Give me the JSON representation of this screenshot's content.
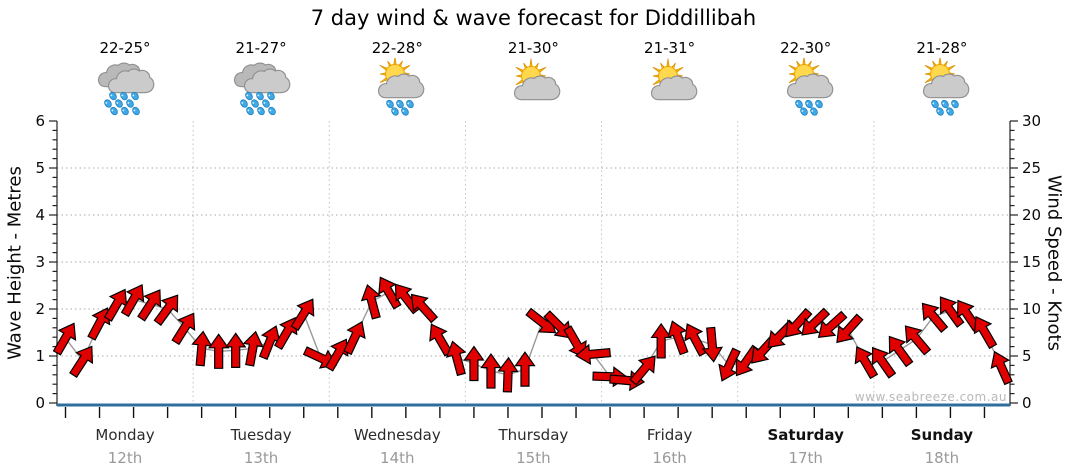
{
  "title": "7 day wind & wave forecast for Diddillibah",
  "watermark": "www.seabreeze.com.au",
  "days": [
    {
      "name": "Monday",
      "date": "12th",
      "temp": "22-25°",
      "icon": "rain",
      "bold": false
    },
    {
      "name": "Tuesday",
      "date": "13th",
      "temp": "21-27°",
      "icon": "rain",
      "bold": false
    },
    {
      "name": "Wednesday",
      "date": "14th",
      "temp": "22-28°",
      "icon": "sun-cloud-rain",
      "bold": false
    },
    {
      "name": "Thursday",
      "date": "15th",
      "temp": "21-30°",
      "icon": "sun-cloud",
      "bold": false
    },
    {
      "name": "Friday",
      "date": "16th",
      "temp": "21-31°",
      "icon": "sun-cloud",
      "bold": false
    },
    {
      "name": "Saturday",
      "date": "17th",
      "temp": "22-30°",
      "icon": "sun-cloud-rain",
      "bold": true
    },
    {
      "name": "Sunday",
      "date": "18th",
      "temp": "21-28°",
      "icon": "sun-cloud-rain",
      "bold": true
    }
  ],
  "chart_data": {
    "type": "line",
    "categories": [
      "Monday 12th",
      "Tuesday 13th",
      "Wednesday 14th",
      "Thursday 15th",
      "Friday 16th",
      "Saturday 17th",
      "Sunday 18th"
    ],
    "left_axis": {
      "title": "Wave Height - Metres",
      "min": 0,
      "max": 6,
      "tick_step": 1,
      "minor_step": 0.2,
      "tick_labels": [
        "0",
        "1",
        "2",
        "3",
        "4",
        "5",
        "6"
      ]
    },
    "right_axis": {
      "title": "Wind Speed - Knots",
      "min": 0,
      "max": 30,
      "tick_step": 5,
      "minor_step": 1,
      "tick_labels": [
        "0",
        "5",
        "10",
        "15",
        "20",
        "25",
        "30"
      ]
    },
    "grid": "dotted",
    "points_per_day": 8,
    "series": [
      {
        "name": "wind-speed",
        "units": "knots",
        "marker": "direction-arrow",
        "point_format": "[knots, arrow_rotation_deg_clockwise_from_up]",
        "days": [
          {
            "day": "Monday",
            "points": [
              [
                6.9,
                30
              ],
              [
                4.5,
                33
              ],
              [
                8.5,
                28
              ],
              [
                10.5,
                30
              ],
              [
                11.0,
                30
              ],
              [
                10.5,
                33
              ],
              [
                10.0,
                36
              ],
              [
                8.0,
                32
              ]
            ]
          },
          {
            "day": "Tuesday",
            "points": [
              [
                5.8,
                5
              ],
              [
                5.5,
                0
              ],
              [
                5.6,
                0
              ],
              [
                5.8,
                10
              ],
              [
                6.5,
                22
              ],
              [
                7.5,
                30
              ],
              [
                9.5,
                32
              ],
              [
                4.8,
                115
              ]
            ]
          },
          {
            "day": "Wednesday",
            "points": [
              [
                5.2,
                30
              ],
              [
                7.0,
                25
              ],
              [
                10.8,
                -15
              ],
              [
                11.8,
                -30
              ],
              [
                11.2,
                -38
              ],
              [
                10.2,
                -42
              ],
              [
                6.8,
                -30
              ],
              [
                4.8,
                -15
              ]
            ]
          },
          {
            "day": "Thursday",
            "points": [
              [
                4.2,
                0
              ],
              [
                3.4,
                0
              ],
              [
                3.0,
                2
              ],
              [
                3.6,
                0
              ],
              [
                8.6,
                128
              ],
              [
                8.2,
                135
              ],
              [
                6.4,
                150
              ],
              [
                5.2,
                265
              ]
            ]
          },
          {
            "day": "Friday",
            "points": [
              [
                2.8,
                92
              ],
              [
                2.4,
                95
              ],
              [
                3.6,
                40
              ],
              [
                6.6,
                0
              ],
              [
                7.0,
                -20
              ],
              [
                6.8,
                -28
              ],
              [
                6.2,
                175
              ],
              [
                4.0,
                205
              ]
            ]
          },
          {
            "day": "Saturday",
            "points": [
              [
                4.4,
                215
              ],
              [
                5.6,
                222
              ],
              [
                7.2,
                225
              ],
              [
                8.4,
                222
              ],
              [
                8.5,
                226
              ],
              [
                8.2,
                228
              ],
              [
                7.8,
                222
              ],
              [
                4.4,
                -30
              ]
            ]
          },
          {
            "day": "Sunday",
            "points": [
              [
                4.4,
                -35
              ],
              [
                5.6,
                -36
              ],
              [
                6.8,
                -40
              ],
              [
                9.2,
                -40
              ],
              [
                9.8,
                -36
              ],
              [
                9.4,
                -34
              ],
              [
                7.6,
                -30
              ],
              [
                3.8,
                -24
              ]
            ]
          }
        ]
      },
      {
        "name": "wave-height",
        "units": "metres",
        "constant_value": 0
      }
    ]
  },
  "colors": {
    "arrow_fill": "#e00000",
    "arrow_outline": "#000000",
    "connector": "#999999",
    "wave_line": "#2e6d9c",
    "grid_h": "#aaaaaa",
    "grid_v": "#c4c4c4",
    "axis": "#333333",
    "tick": "#222222",
    "tick_label": "#0a0a0a",
    "day_label": "#2b2b2b",
    "date_label": "#9a9a9a",
    "watermark": "#b8b8b8",
    "cloud_front": "#cbcbcb",
    "cloud_back": "#b9b9b9",
    "cloud_stroke": "#8f8f8f",
    "drop_fill": "#3fa9e5",
    "drop_stroke": "#1f7fc0",
    "sun_ray": "#f5b800",
    "sun_ray_stroke": "#dd9000",
    "sun_disc": "#ffd84d",
    "sun_disc_stroke": "#eba400"
  }
}
